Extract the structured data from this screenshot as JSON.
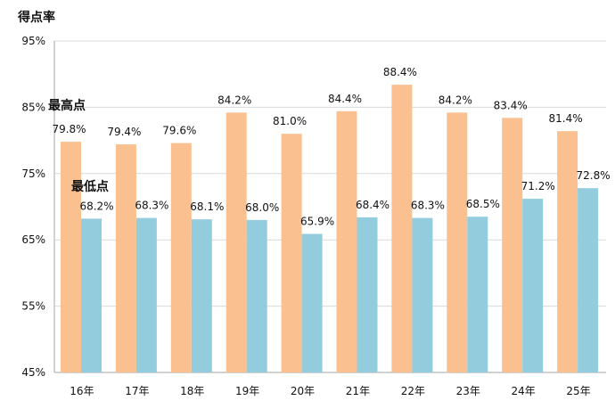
{
  "chart_data": {
    "type": "bar",
    "ylabel": "得点率",
    "ylim": [
      45,
      95
    ],
    "yticks": [
      45,
      55,
      65,
      75,
      85,
      95
    ],
    "ytick_labels": [
      "45%",
      "55%",
      "65%",
      "75%",
      "85%",
      "95%"
    ],
    "grid": true,
    "legend": "none",
    "categories": [
      "16年",
      "17年",
      "18年",
      "19年",
      "20年",
      "21年",
      "22年",
      "23年",
      "24年",
      "25年"
    ],
    "series": [
      {
        "name": "最高点",
        "color": "#FAC090",
        "values": [
          79.8,
          79.4,
          79.6,
          84.2,
          81.0,
          84.4,
          88.4,
          84.2,
          83.4,
          81.4
        ],
        "labels": [
          "79.8%",
          "79.4%",
          "79.6%",
          "84.2%",
          "81.0%",
          "84.4%",
          "88.4%",
          "84.2%",
          "83.4%",
          "81.4%"
        ]
      },
      {
        "name": "最低点",
        "color": "#93CDDD",
        "values": [
          68.2,
          68.3,
          68.1,
          68.0,
          65.9,
          68.4,
          68.3,
          68.5,
          71.2,
          72.8
        ],
        "labels": [
          "68.2%",
          "68.3%",
          "68.1%",
          "68.0%",
          "65.9%",
          "68.4%",
          "68.3%",
          "68.5%",
          "71.2%",
          "72.8%"
        ]
      }
    ]
  }
}
